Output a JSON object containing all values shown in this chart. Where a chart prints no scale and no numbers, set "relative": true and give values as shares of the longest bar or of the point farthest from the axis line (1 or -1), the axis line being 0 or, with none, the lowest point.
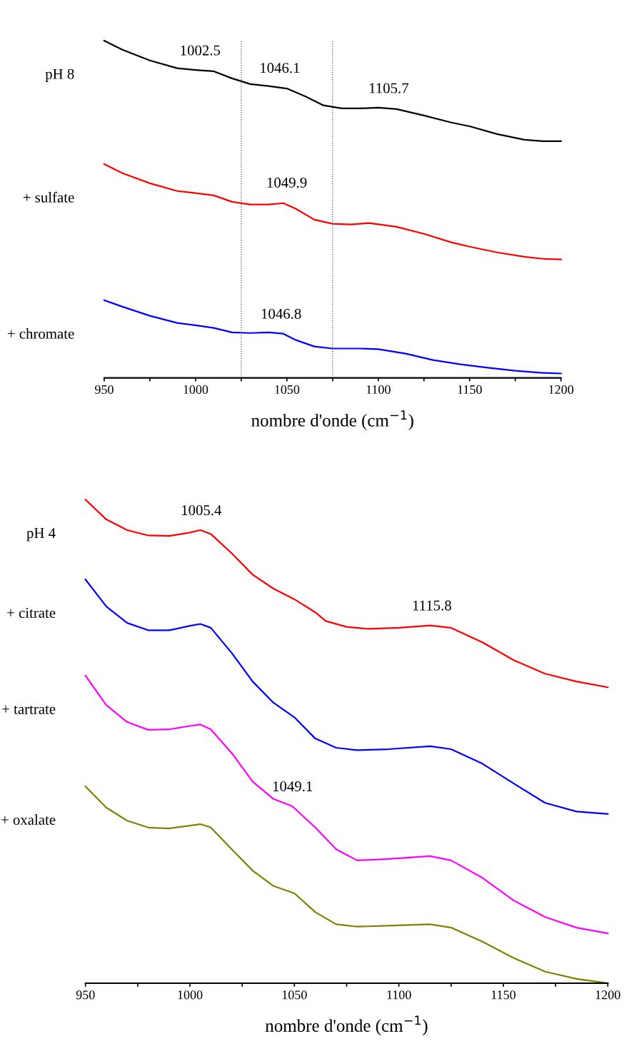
{
  "chart_data": [
    {
      "type": "line",
      "relative": true,
      "xlabel": "nombre d'onde (cm$^{−1}$)",
      "xlim": [
        950,
        1200
      ],
      "xticks": [
        950,
        {
          "value": 975,
          "label": null
        },
        1000,
        {
          "value": 1025,
          "label": null
        },
        1050,
        {
          "value": 1075,
          "label": null
        },
        1100,
        {
          "value": 1125,
          "label": null
        },
        1150,
        {
          "value": 1175,
          "label": null
        },
        1200
      ],
      "tick_labels": "x",
      "grid": false,
      "legend": false,
      "line_style": "solid",
      "marker": "none",
      "ref_lines": [
        {
          "axis": "x",
          "value": 1025,
          "color": "#555555",
          "line_style": "dotted"
        },
        {
          "axis": "x",
          "value": 1075,
          "color": "#555555",
          "line_style": "dotted"
        }
      ],
      "annotations": [
        {
          "text": "1002.5",
          "x": 1002.5,
          "y": 0.912
        },
        {
          "text": "1046.1",
          "x": 1046.1,
          "y": 0.86
        },
        {
          "text": "1105.7",
          "x": 1105.7,
          "y": 0.8
        },
        {
          "text": "1049.9",
          "x": 1049.9,
          "y": 0.52
        },
        {
          "text": "1046.8",
          "x": 1046.8,
          "y": 0.131
        }
      ],
      "series": [
        {
          "name": "pH 8",
          "color": "#000000",
          "x": [
            950,
            960,
            975,
            990,
            1000,
            1010,
            1020,
            1030,
            1040,
            1050,
            1060,
            1070,
            1080,
            1090,
            1100,
            1110,
            1125,
            1140,
            1150,
            1165,
            1180,
            1190,
            1200
          ],
          "values": [
            1.0,
            0.973,
            0.941,
            0.918,
            0.913,
            0.909,
            0.888,
            0.871,
            0.865,
            0.858,
            0.835,
            0.808,
            0.799,
            0.799,
            0.801,
            0.797,
            0.778,
            0.757,
            0.746,
            0.723,
            0.706,
            0.702,
            0.702
          ]
        },
        {
          "name": "+ sulfate",
          "color": "#ff0000",
          "x": [
            950,
            960,
            975,
            990,
            1000,
            1010,
            1020,
            1030,
            1040,
            1048,
            1055,
            1065,
            1075,
            1085,
            1095,
            1110,
            1125,
            1140,
            1150,
            1165,
            1180,
            1190,
            1200
          ],
          "values": [
            0.634,
            0.607,
            0.577,
            0.554,
            0.548,
            0.541,
            0.522,
            0.514,
            0.514,
            0.518,
            0.501,
            0.469,
            0.457,
            0.455,
            0.459,
            0.448,
            0.427,
            0.402,
            0.389,
            0.372,
            0.359,
            0.353,
            0.351
          ]
        },
        {
          "name": "+ chromate",
          "color": "#0000ff",
          "x": [
            950,
            960,
            975,
            990,
            1000,
            1010,
            1020,
            1030,
            1040,
            1048,
            1055,
            1065,
            1075,
            1090,
            1100,
            1115,
            1130,
            1145,
            1160,
            1175,
            1190,
            1200
          ],
          "values": [
            0.23,
            0.211,
            0.184,
            0.163,
            0.156,
            0.148,
            0.135,
            0.133,
            0.135,
            0.131,
            0.112,
            0.093,
            0.087,
            0.087,
            0.085,
            0.072,
            0.053,
            0.04,
            0.03,
            0.021,
            0.015,
            0.013
          ]
        }
      ]
    },
    {
      "type": "line",
      "relative": true,
      "xlabel": "nombre d'onde (cm$^{−1}$)",
      "xlim": [
        950,
        1200
      ],
      "xticks": [
        950,
        {
          "value": 975,
          "label": null
        },
        1000,
        {
          "value": 1025,
          "label": null
        },
        1050,
        {
          "value": 1075,
          "label": null
        },
        1100,
        {
          "value": 1125,
          "label": null
        },
        1150,
        {
          "value": 1175,
          "label": null
        },
        1200
      ],
      "tick_labels": "x",
      "grid": false,
      "legend": false,
      "line_style": "solid",
      "marker": "none",
      "annotations": [
        {
          "text": "1005.4",
          "x": 1005.4,
          "y": 0.937
        },
        {
          "text": "1115.8",
          "x": 1115.8,
          "y": 0.74
        },
        {
          "text": "1049.1",
          "x": 1049.1,
          "y": 0.366
        }
      ],
      "series": [
        {
          "name": "pH 4",
          "color": "#ff0000",
          "x": [
            950,
            960,
            970,
            980,
            990,
            1000,
            1005,
            1010,
            1020,
            1030,
            1040,
            1050,
            1060,
            1065,
            1075,
            1085,
            1100,
            1115,
            1125,
            1140,
            1155,
            1170,
            1185,
            1200
          ],
          "values": [
            1.0,
            0.959,
            0.937,
            0.926,
            0.925,
            0.932,
            0.937,
            0.929,
            0.889,
            0.845,
            0.816,
            0.794,
            0.767,
            0.749,
            0.737,
            0.733,
            0.735,
            0.74,
            0.735,
            0.705,
            0.668,
            0.64,
            0.624,
            0.612
          ]
        },
        {
          "name": "+ citrate",
          "color": "#0000ff",
          "x": [
            950,
            960,
            970,
            980,
            990,
            1000,
            1005,
            1010,
            1020,
            1030,
            1040,
            1050,
            1060,
            1070,
            1080,
            1095,
            1115,
            1125,
            1140,
            1155,
            1170,
            1185,
            1200
          ],
          "values": [
            0.835,
            0.779,
            0.745,
            0.73,
            0.73,
            0.739,
            0.743,
            0.735,
            0.683,
            0.624,
            0.58,
            0.55,
            0.506,
            0.487,
            0.482,
            0.484,
            0.49,
            0.484,
            0.454,
            0.413,
            0.373,
            0.355,
            0.35
          ]
        },
        {
          "name": "+ tartrate",
          "color": "#ff00ff",
          "x": [
            950,
            960,
            970,
            980,
            990,
            1000,
            1005,
            1010,
            1020,
            1030,
            1040,
            1049,
            1060,
            1070,
            1080,
            1095,
            1115,
            1125,
            1140,
            1155,
            1170,
            1185,
            1200
          ],
          "values": [
            0.636,
            0.575,
            0.54,
            0.524,
            0.525,
            0.532,
            0.535,
            0.525,
            0.476,
            0.417,
            0.381,
            0.366,
            0.322,
            0.277,
            0.254,
            0.257,
            0.263,
            0.254,
            0.218,
            0.171,
            0.137,
            0.115,
            0.103
          ]
        },
        {
          "name": "+ oxalate",
          "color": "#808000",
          "x": [
            950,
            960,
            970,
            980,
            990,
            1000,
            1005,
            1010,
            1020,
            1030,
            1040,
            1050,
            1060,
            1070,
            1080,
            1095,
            1115,
            1125,
            1140,
            1155,
            1170,
            1185,
            1200
          ],
          "values": [
            0.407,
            0.363,
            0.336,
            0.322,
            0.32,
            0.326,
            0.329,
            0.322,
            0.277,
            0.233,
            0.201,
            0.186,
            0.147,
            0.122,
            0.117,
            0.119,
            0.122,
            0.115,
            0.086,
            0.052,
            0.024,
            0.009,
            0.0
          ]
        }
      ]
    }
  ]
}
